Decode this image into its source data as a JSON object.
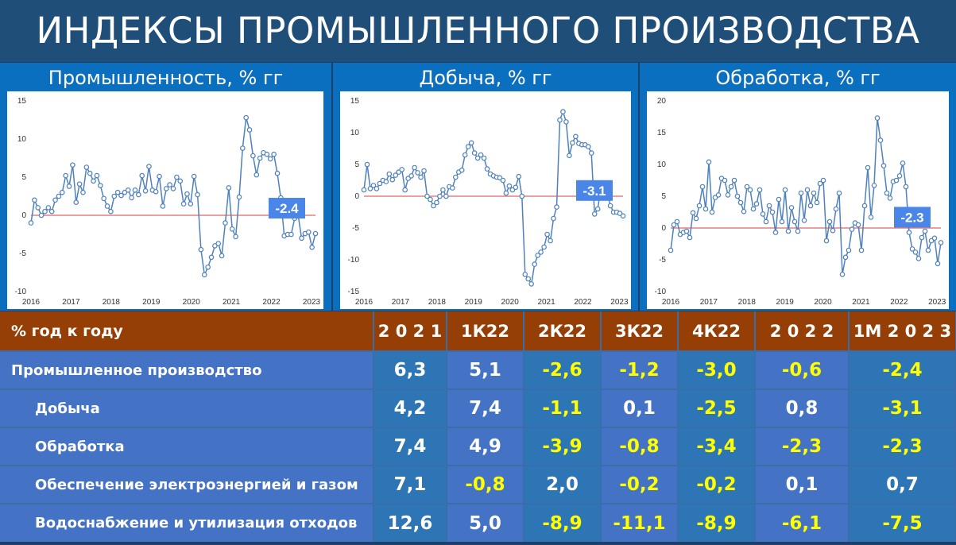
{
  "title": "ИНДЕКСЫ ПРОМЫШЛЕННОГО ПРОИЗВОДСТВА",
  "chart_data": [
    {
      "type": "line",
      "title": "Промышленность, % гг",
      "x_labels": [
        "2016",
        "2017",
        "2018",
        "2019",
        "2020",
        "2021",
        "2022",
        "2023"
      ],
      "x_start": 2016,
      "x_end": 2023.1,
      "ylim": [
        -10,
        15
      ],
      "yticks": [
        -10,
        -5,
        0,
        5,
        10,
        15
      ],
      "callout": "-2.4",
      "values": [
        -1,
        2,
        1,
        0,
        0.5,
        1,
        0.5,
        2,
        2.5,
        3,
        5.2,
        3.8,
        6.6,
        1.7,
        4.1,
        3,
        6.3,
        5.5,
        4.5,
        5.2,
        3.9,
        2.2,
        1.2,
        0.5,
        2.5,
        3,
        2.6,
        3,
        3.3,
        2.3,
        3.3,
        2.7,
        5.2,
        3.2,
        6.4,
        3.3,
        3.1,
        5.1,
        1.2,
        3.5,
        4,
        3.5,
        5,
        4.5,
        1.5,
        2.8,
        1.5,
        5.1,
        2.7,
        -4.5,
        -7.8,
        -6.8,
        -5.5,
        -4,
        -3.7,
        -5.3,
        -1,
        3.6,
        -1.8,
        -2.8,
        2.4,
        8.8,
        12.8,
        11.2,
        7.8,
        5.3,
        7.5,
        8.2,
        8,
        7.4,
        8,
        5.5,
        2.3,
        -2.7,
        -2.5,
        -2.5,
        -0.4,
        0,
        -3,
        -2.4,
        -2.2,
        -4.2,
        -2.4
      ],
      "series_color": "#4f81bd"
    },
    {
      "type": "line",
      "title": "Добыча, % гг",
      "x_labels": [
        "2016",
        "2017",
        "2018",
        "2019",
        "2020",
        "2021",
        "2022",
        "2023"
      ],
      "x_start": 2016,
      "x_end": 2023.1,
      "ylim": [
        -15,
        15
      ],
      "yticks": [
        -15,
        -10,
        -5,
        0,
        5,
        10,
        15
      ],
      "callout": "-3.1",
      "values": [
        1,
        5,
        1.2,
        1.7,
        1.2,
        2,
        2.5,
        2.3,
        3.5,
        2.6,
        3.3,
        3.8,
        4.2,
        1,
        2.8,
        3.2,
        4.5,
        3.7,
        3,
        4,
        0,
        -0.5,
        -1.5,
        -1,
        0,
        1,
        0,
        1.5,
        1.3,
        3,
        3.8,
        4.1,
        6.5,
        7.8,
        8.4,
        6.8,
        6,
        6.5,
        6,
        4.3,
        3.5,
        3.2,
        3,
        2.9,
        2.5,
        0.5,
        1.6,
        1,
        1.4,
        3.1,
        0,
        -12.3,
        -13,
        -13.8,
        -10.7,
        -9.3,
        -8.8,
        -8,
        -6,
        -7,
        -3.5,
        -1.7,
        12,
        13.3,
        11.7,
        6.4,
        8.4,
        9.4,
        8.3,
        8.1,
        8.1,
        7.8,
        6.8,
        -2.8,
        -2,
        1.5,
        0.8,
        0.9,
        -1.5,
        -2.5,
        -2.5,
        -2.7,
        -3.1
      ],
      "series_color": "#4f81bd"
    },
    {
      "type": "line",
      "title": "Обработка, % гг",
      "x_labels": [
        "2016",
        "2017",
        "2018",
        "2019",
        "2020",
        "2021",
        "2022",
        "2023"
      ],
      "x_start": 2016,
      "x_end": 2023.1,
      "ylim": [
        -10,
        20
      ],
      "yticks": [
        -10,
        -5,
        0,
        5,
        10,
        15,
        20
      ],
      "callout": "-2.3",
      "values": [
        -3.5,
        0.5,
        1,
        -1,
        -0.7,
        -0.5,
        -1.5,
        2.4,
        1.5,
        3.5,
        6.5,
        3,
        10.4,
        2.5,
        4.8,
        5.2,
        7.8,
        7.5,
        5.2,
        6.5,
        7.5,
        5,
        4,
        2.6,
        6.5,
        6,
        3,
        3.8,
        6,
        2.2,
        1,
        3.5,
        2.5,
        -0.7,
        4.5,
        1,
        6,
        -0.5,
        3.2,
        1,
        -0.5,
        5.5,
        1.2,
        6,
        3.5,
        5.5,
        4,
        7,
        7.5,
        -2,
        1,
        -0.4,
        3,
        5.5,
        -7.3,
        -4.6,
        -3.5,
        -0.2,
        0.8,
        0.5,
        -3.5,
        3.5,
        9.5,
        1.7,
        6.7,
        17.3,
        13.8,
        9.8,
        5.5,
        4.7,
        7.3,
        7.5,
        8.2,
        10.2,
        6.5,
        -0.7,
        -3.3,
        -3.8,
        -4.8,
        -1.5,
        -0.5,
        -3.5,
        -2,
        -1.6,
        -5.6,
        -2.3
      ],
      "series_color": "#4f81bd"
    }
  ],
  "table": {
    "header": [
      "% год к году",
      "2 0 2 1",
      "1К22",
      "2К22",
      "3К22",
      "4К22",
      "2 0 2 2",
      "1М 2 0 2 3"
    ],
    "rows": [
      {
        "label": "Промышленное производство",
        "indent": false,
        "values": [
          "6,3",
          "5,1",
          "-2,6",
          "-1,2",
          "-3,0",
          "-0,6",
          "-2,4"
        ]
      },
      {
        "label": "Добыча",
        "indent": true,
        "values": [
          "4,2",
          "7,4",
          "-1,1",
          "0,1",
          "-2,5",
          "0,8",
          "-3,1"
        ]
      },
      {
        "label": "Обработка",
        "indent": true,
        "values": [
          "7,4",
          "4,9",
          "-3,9",
          "-0,8",
          "-3,4",
          "-2,3",
          "-2,3"
        ]
      },
      {
        "label": "Обеспечение электроэнергией и газом",
        "indent": true,
        "values": [
          "7,1",
          "-0,8",
          "2,0",
          "-0,2",
          "-0,2",
          "0,1",
          "0,7"
        ]
      },
      {
        "label": "Водоснабжение и утилизация отходов",
        "indent": true,
        "values": [
          "12,6",
          "5,0",
          "-8,9",
          "-11,1",
          "-8,9",
          "-6,1",
          "-7,5"
        ]
      }
    ]
  },
  "colors": {
    "accent_negative": "#ffff00",
    "header_bg": "#953f06",
    "row_bg": "#2e75b6",
    "label_bg": "#4472c4",
    "title_bg": "#1f4e79",
    "panel_bg": "#0b6fc0"
  }
}
